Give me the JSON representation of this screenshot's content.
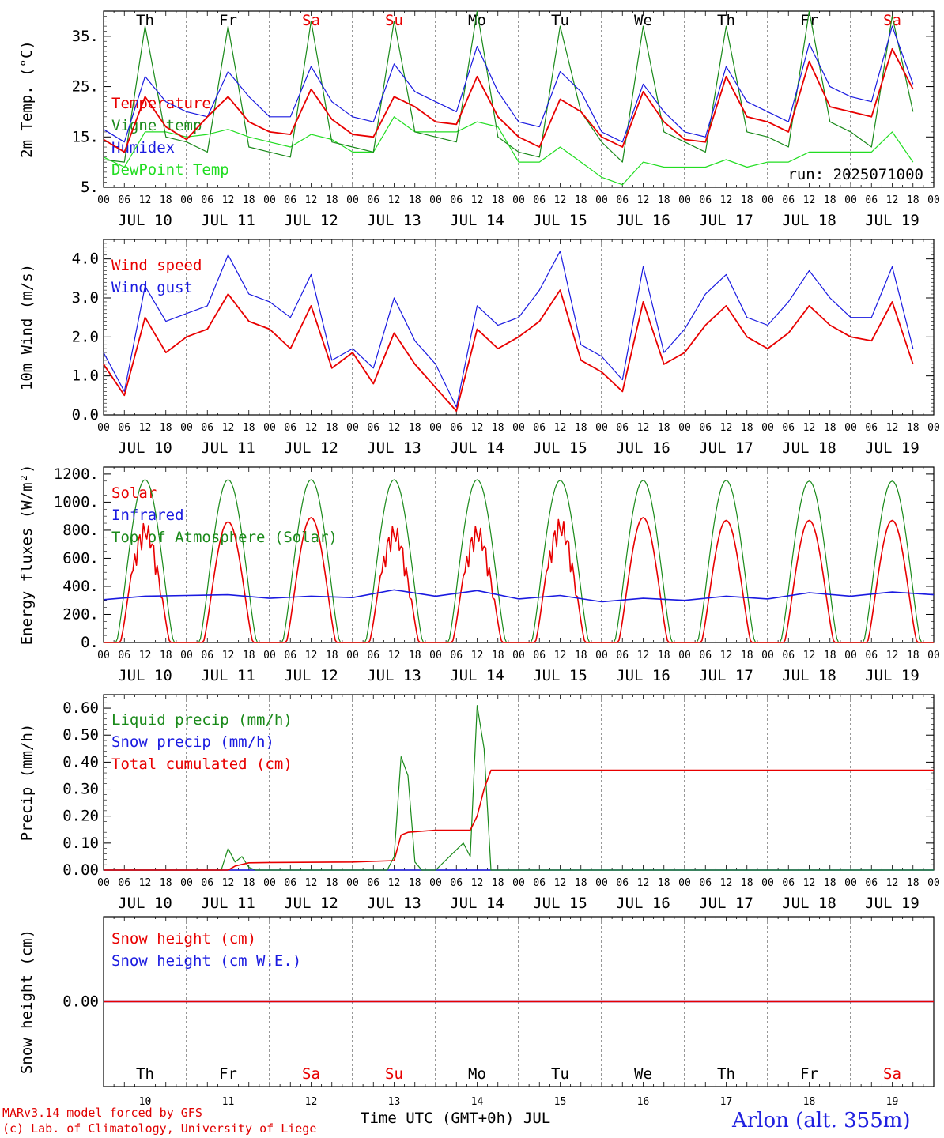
{
  "run_label": "run: 2025071000",
  "days": [
    "Th",
    "Fr",
    "Sa",
    "Su",
    "Mo",
    "Tu",
    "We",
    "Th",
    "Fr",
    "Sa"
  ],
  "dates": [
    "JUL 10",
    "JUL 11",
    "JUL 12",
    "JUL 13",
    "JUL 14",
    "JUL 15",
    "JUL 16",
    "JUL 17",
    "JUL 18",
    "JUL 19"
  ],
  "day_numbers": [
    "10",
    "11",
    "12",
    "13",
    "14",
    "15",
    "16",
    "17",
    "18",
    "19"
  ],
  "hour_ticks": [
    "00",
    "06",
    "12",
    "18"
  ],
  "colors": {
    "red": "#e80000",
    "green": "#1a8a1a",
    "blue": "#1a1ae0",
    "lime": "#22dd22",
    "weekend": "#e80000"
  },
  "footer": {
    "line1": "MARv3.14 model forced by GFS",
    "line2": "(c) Lab. of Climatology, University of Liege",
    "xtitle": "Time UTC (GMT+0h) JUL",
    "station": "Arlon (alt. 355m)"
  },
  "chart_data": [
    {
      "type": "line",
      "ylabel": "2m Temp. (°C)",
      "ylim": [
        5,
        40
      ],
      "yticks": [
        "5.",
        "15.",
        "25.",
        "35."
      ],
      "x_unit": "hours since JUL 10 00 UTC",
      "series": [
        {
          "name": "Temperature",
          "color": "#e80000",
          "x": [
            0,
            6,
            12,
            18,
            24,
            30,
            36,
            42,
            48,
            54,
            60,
            66,
            72,
            78,
            84,
            90,
            96,
            102,
            108,
            114,
            120,
            126,
            132,
            138,
            144,
            150,
            156,
            162,
            168,
            174,
            180,
            186,
            192,
            198,
            204,
            210,
            216,
            222,
            228,
            234
          ],
          "y": [
            14.5,
            12,
            23,
            17,
            14.5,
            19,
            23,
            18,
            16,
            15.5,
            24.5,
            18.5,
            15.5,
            15,
            23,
            21,
            18,
            17.5,
            27,
            19,
            15,
            13,
            22.5,
            20,
            15,
            13,
            24,
            18,
            14.5,
            14,
            27,
            19,
            18,
            16,
            30,
            21,
            20,
            19,
            32.5,
            24.5
          ]
        },
        {
          "name": "Vigne temp",
          "color": "#1a8a1a",
          "x": [
            0,
            6,
            12,
            18,
            24,
            30,
            36,
            42,
            48,
            54,
            60,
            66,
            72,
            78,
            84,
            90,
            96,
            102,
            108,
            114,
            120,
            126,
            132,
            138,
            144,
            150,
            156,
            162,
            168,
            174,
            180,
            186,
            192,
            198,
            204,
            210,
            216,
            222,
            228,
            234
          ],
          "y": [
            10.5,
            10,
            37,
            15,
            14,
            12,
            37,
            13,
            12,
            11,
            38,
            14,
            13,
            12,
            38,
            16,
            15,
            14,
            40,
            15,
            12,
            11,
            37,
            20,
            14,
            10,
            37,
            16,
            14,
            12,
            37,
            16,
            15,
            13,
            40,
            18,
            16,
            13,
            39,
            20
          ]
        },
        {
          "name": "Humidex",
          "color": "#1a1ae0",
          "x": [
            0,
            6,
            12,
            18,
            24,
            30,
            36,
            42,
            48,
            54,
            60,
            66,
            72,
            78,
            84,
            90,
            96,
            102,
            108,
            114,
            120,
            126,
            132,
            138,
            144,
            150,
            156,
            162,
            168,
            174,
            180,
            186,
            192,
            198,
            204,
            210,
            216,
            222,
            228,
            234
          ],
          "y": [
            16.5,
            14,
            27,
            22,
            20,
            19,
            28,
            23,
            19,
            19,
            29,
            22,
            19,
            18,
            29.5,
            24,
            22,
            20,
            33,
            24,
            18,
            17,
            28,
            24,
            16,
            14,
            25.5,
            20,
            16,
            15,
            29,
            22,
            20,
            18,
            33.5,
            25,
            23,
            22,
            37,
            25.5
          ]
        },
        {
          "name": "DewPoint Temp",
          "color": "#22dd22",
          "x": [
            0,
            6,
            12,
            18,
            24,
            30,
            36,
            42,
            48,
            54,
            60,
            66,
            72,
            78,
            84,
            90,
            96,
            102,
            108,
            114,
            120,
            126,
            132,
            138,
            144,
            150,
            156,
            162,
            168,
            174,
            180,
            186,
            192,
            198,
            204,
            210,
            216,
            222,
            228,
            234
          ],
          "y": [
            11,
            9,
            16,
            16,
            15,
            15.5,
            16.5,
            15,
            14,
            13,
            15.5,
            14.5,
            12,
            12,
            19,
            16,
            16,
            16,
            18,
            17,
            10,
            10,
            13,
            10,
            7,
            5.5,
            10,
            9,
            9,
            9,
            10.5,
            9,
            10,
            10,
            12,
            12,
            12,
            12,
            16,
            10
          ]
        }
      ]
    },
    {
      "type": "line",
      "ylabel": "10m Wind (m/s)",
      "ylim": [
        0,
        4.5
      ],
      "yticks": [
        "0.0",
        "1.0",
        "2.0",
        "3.0",
        "4.0"
      ],
      "series": [
        {
          "name": "Wind speed",
          "color": "#e80000",
          "x": [
            0,
            6,
            12,
            18,
            24,
            30,
            36,
            42,
            48,
            54,
            60,
            66,
            72,
            78,
            84,
            90,
            96,
            102,
            108,
            114,
            120,
            126,
            132,
            138,
            144,
            150,
            156,
            162,
            168,
            174,
            180,
            186,
            192,
            198,
            204,
            210,
            216,
            222,
            228,
            234
          ],
          "y": [
            1.3,
            0.5,
            2.5,
            1.6,
            2.0,
            2.2,
            3.1,
            2.4,
            2.2,
            1.7,
            2.8,
            1.2,
            1.6,
            0.8,
            2.1,
            1.3,
            0.7,
            0.1,
            2.2,
            1.7,
            2.0,
            2.4,
            3.2,
            1.4,
            1.1,
            0.6,
            2.9,
            1.3,
            1.6,
            2.3,
            2.8,
            2.0,
            1.7,
            2.1,
            2.8,
            2.3,
            2.0,
            1.9,
            2.9,
            1.3
          ]
        },
        {
          "name": "Wind gust",
          "color": "#1a1ae0",
          "x": [
            0,
            6,
            12,
            18,
            24,
            30,
            36,
            42,
            48,
            54,
            60,
            66,
            72,
            78,
            84,
            90,
            96,
            102,
            108,
            114,
            120,
            126,
            132,
            138,
            144,
            150,
            156,
            162,
            168,
            174,
            180,
            186,
            192,
            198,
            204,
            210,
            216,
            222,
            228,
            234
          ],
          "y": [
            1.6,
            0.6,
            3.3,
            2.4,
            2.6,
            2.8,
            4.1,
            3.1,
            2.9,
            2.5,
            3.6,
            1.4,
            1.7,
            1.2,
            3.0,
            1.9,
            1.3,
            0.2,
            2.8,
            2.3,
            2.5,
            3.2,
            4.2,
            1.8,
            1.5,
            0.9,
            3.8,
            1.6,
            2.2,
            3.1,
            3.6,
            2.5,
            2.3,
            2.9,
            3.7,
            3.0,
            2.5,
            2.5,
            3.8,
            1.7
          ]
        }
      ]
    },
    {
      "type": "line",
      "ylabel": "Energy fluxes (W/m²)",
      "ylim": [
        0,
        1250
      ],
      "yticks": [
        "0.",
        "200.",
        "400.",
        "600.",
        "800.",
        "1000.",
        "1200."
      ],
      "series": [
        {
          "name": "Solar",
          "color": "#e80000",
          "daily_peak": [
            860,
            860,
            890,
            840,
            840,
            890,
            890,
            870,
            870,
            870
          ]
        },
        {
          "name": "Infrared",
          "color": "#1a1ae0",
          "x": [
            0,
            12,
            24,
            36,
            48,
            60,
            72,
            84,
            96,
            108,
            120,
            132,
            144,
            156,
            168,
            180,
            192,
            204,
            216,
            228,
            240
          ],
          "y": [
            305,
            330,
            335,
            340,
            315,
            330,
            320,
            375,
            330,
            370,
            310,
            335,
            290,
            315,
            300,
            330,
            310,
            355,
            330,
            360,
            340
          ]
        },
        {
          "name": "Top of Atmosphere (Solar)",
          "color": "#1a8a1a",
          "daily_peak": [
            1160,
            1160,
            1160,
            1160,
            1160,
            1155,
            1155,
            1155,
            1150,
            1150
          ]
        }
      ]
    },
    {
      "type": "line",
      "ylabel": "Precip (mm/h)",
      "ylim": [
        0,
        0.65
      ],
      "yticks": [
        "0.00",
        "0.10",
        "0.20",
        "0.30",
        "0.40",
        "0.50",
        "0.60"
      ],
      "series": [
        {
          "name": "Liquid precip (mm/h)",
          "color": "#1a8a1a",
          "x": [
            0,
            34,
            36,
            38,
            40,
            42,
            44,
            46,
            48,
            60,
            82,
            84,
            86,
            88,
            90,
            92,
            96,
            104,
            106,
            108,
            110,
            112,
            114,
            240
          ],
          "y": [
            0,
            0,
            0.08,
            0.03,
            0.05,
            0.01,
            0,
            0,
            0,
            0,
            0,
            0.05,
            0.42,
            0.35,
            0.03,
            0,
            0,
            0.1,
            0.05,
            0.61,
            0.45,
            0,
            0,
            0
          ]
        },
        {
          "name": "Snow precip (mm/h)",
          "color": "#1a1ae0",
          "x": [
            0,
            240
          ],
          "y": [
            0,
            0
          ]
        },
        {
          "name": "Total cumulated (cm)",
          "color": "#e80000",
          "x": [
            0,
            36,
            38,
            42,
            48,
            72,
            84,
            86,
            88,
            96,
            106,
            108,
            110,
            112,
            240
          ],
          "y": [
            0,
            0,
            0.015,
            0.027,
            0.028,
            0.03,
            0.035,
            0.13,
            0.14,
            0.148,
            0.148,
            0.2,
            0.3,
            0.37,
            0.37
          ]
        }
      ]
    },
    {
      "type": "line",
      "ylabel": "Snow height (cm)",
      "yticks": [
        "0.00"
      ],
      "series": [
        {
          "name": "Snow height (cm)",
          "color": "#e80000",
          "x": [
            0,
            240
          ],
          "y": [
            0,
            0
          ]
        },
        {
          "name": "Snow height (cm W.E.)",
          "color": "#1a1ae0",
          "x": [
            0,
            240
          ],
          "y": [
            0,
            0
          ]
        }
      ]
    }
  ]
}
